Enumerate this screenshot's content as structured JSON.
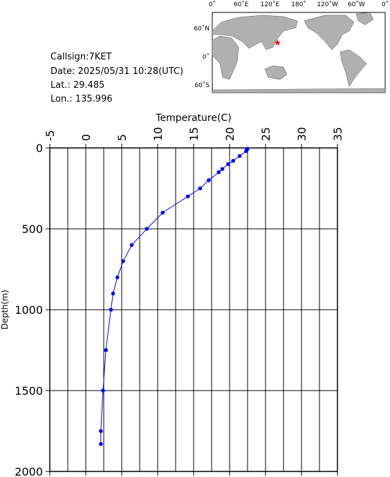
{
  "info": {
    "callsign": "Callsign:7KET",
    "date": "Date:  2025/05/31 10:28(UTC)",
    "lat": "Lat.:  29.485",
    "lon": "Lon.:  135.996"
  },
  "map": {
    "lon_labels": [
      "0˚",
      "60˚E",
      "120˚E",
      "180˚",
      "120˚W",
      "60˚W",
      "0˚"
    ],
    "lat_labels": [
      "60˚N",
      "0˚",
      "60˚S"
    ],
    "position": {
      "lat": 29.485,
      "lon": 135.996
    }
  },
  "chart_data": {
    "type": "line",
    "xlabel": "Temperature(C)",
    "ylabel": "Depth(m)",
    "x": [
      22.5,
      22.4,
      22.3,
      21.4,
      20.5,
      19.8,
      19.0,
      18.5,
      17.1,
      15.9,
      14.2,
      10.7,
      8.5,
      6.4,
      5.2,
      4.4,
      3.8,
      3.5,
      2.8,
      2.4,
      2.1,
      2.1
    ],
    "y": [
      5,
      10,
      20,
      50,
      80,
      100,
      130,
      150,
      200,
      250,
      300,
      400,
      500,
      600,
      700,
      800,
      900,
      1000,
      1250,
      1500,
      1750,
      1830
    ],
    "color": "#0000ff",
    "xlim": [
      -5,
      35
    ],
    "xticks": [
      -5,
      0,
      5,
      10,
      15,
      20,
      25,
      30,
      35
    ],
    "ylim": [
      0,
      2000
    ],
    "yticks": [
      0,
      500,
      1000,
      1500,
      2000
    ],
    "y_inverted": true,
    "x_gridlines": [
      -2.5,
      0,
      2.5,
      5,
      7.5,
      10,
      12.5,
      15,
      17.5,
      20,
      22.5,
      25,
      27.5,
      30,
      32.5
    ]
  }
}
